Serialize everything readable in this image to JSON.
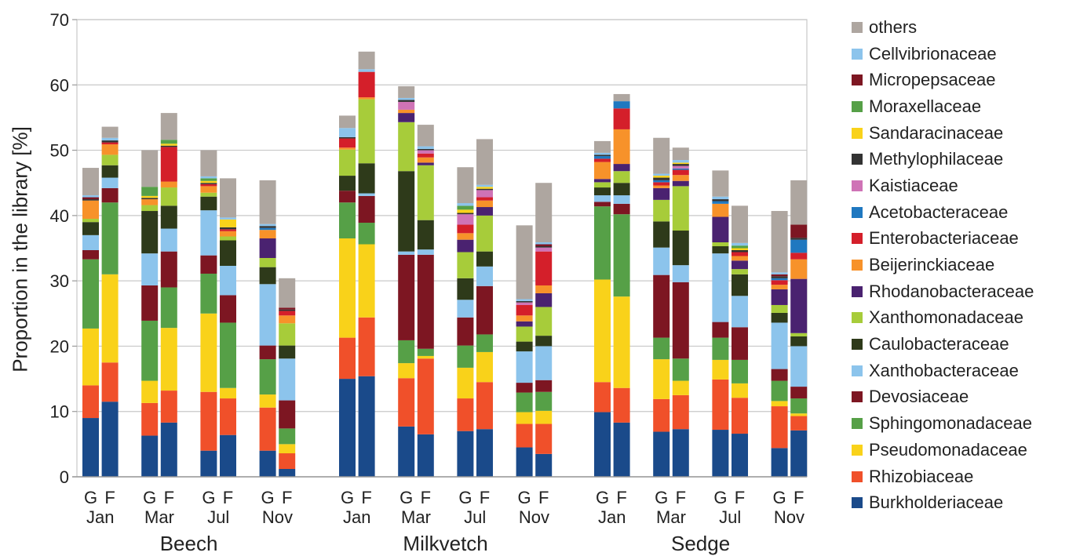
{
  "chart_data": {
    "type": "bar",
    "stacked": true,
    "ylabel": "Proportion in the library [%]",
    "ylim": [
      0,
      70
    ],
    "yticks": [
      0,
      10,
      20,
      30,
      40,
      50,
      60,
      70
    ],
    "grid": true,
    "legend_position": "right",
    "plants": [
      "Beech",
      "Milkvetch",
      "Sedge"
    ],
    "months": [
      "Jan",
      "Mar",
      "Jul",
      "Nov"
    ],
    "sample_types": [
      "G",
      "F"
    ],
    "series": [
      {
        "name": "Burkholderiaceae",
        "color": "#1a4a8a"
      },
      {
        "name": "Rhizobiaceae",
        "color": "#f0502a"
      },
      {
        "name": "Pseudomonadaceae",
        "color": "#f9d21a"
      },
      {
        "name": "Sphingomonadaceae",
        "color": "#56a047"
      },
      {
        "name": "Devosiaceae",
        "color": "#7d1622"
      },
      {
        "name": "Xanthobacteraceae",
        "color": "#8cc4ec"
      },
      {
        "name": "Caulobacteraceae",
        "color": "#2e3a1a"
      },
      {
        "name": "Xanthomonadaceae",
        "color": "#a7cc3a"
      },
      {
        "name": "Rhodanobacteraceae",
        "color": "#4a2270"
      },
      {
        "name": "Beijerinckiaceae",
        "color": "#f7922a"
      },
      {
        "name": "Enterobacteriaceae",
        "color": "#d41f2a"
      },
      {
        "name": "Acetobacteraceae",
        "color": "#1f78c0"
      },
      {
        "name": "Kaistiaceae",
        "color": "#cf73b6"
      },
      {
        "name": "Methylophilaceae",
        "color": "#333333"
      },
      {
        "name": "Sandaracinaceae",
        "color": "#f9d21a"
      },
      {
        "name": "Moraxellaceae",
        "color": "#56a047"
      },
      {
        "name": "Micropepsaceae",
        "color": "#7d1622"
      },
      {
        "name": "Cellvibrionaceae",
        "color": "#8cc4ec"
      },
      {
        "name": "others",
        "color": "#aea6a0"
      }
    ],
    "bars": [
      {
        "plant": "Beech",
        "month": "Jan",
        "type": "G",
        "values": [
          9.0,
          5.0,
          8.7,
          10.6,
          1.4,
          2.3,
          2.0,
          0.5,
          0.0,
          2.8,
          0.0,
          0.0,
          0.0,
          0.2,
          0.0,
          0.0,
          0.3,
          0.3,
          4.2
        ]
      },
      {
        "plant": "Beech",
        "month": "Jan",
        "type": "F",
        "values": [
          11.5,
          6.0,
          13.5,
          11.0,
          2.2,
          1.6,
          1.9,
          1.6,
          0.0,
          1.6,
          0.3,
          0.0,
          0.0,
          0.3,
          0.0,
          0.0,
          0.0,
          0.4,
          1.7
        ]
      },
      {
        "plant": "Beech",
        "month": "Mar",
        "type": "G",
        "values": [
          6.3,
          5.0,
          3.4,
          9.2,
          5.4,
          4.9,
          6.5,
          0.9,
          0.0,
          0.9,
          0.0,
          0.0,
          0.0,
          0.2,
          0.3,
          1.4,
          0.0,
          0.0,
          5.6
        ]
      },
      {
        "plant": "Beech",
        "month": "Mar",
        "type": "F",
        "values": [
          8.3,
          4.9,
          9.6,
          6.2,
          5.5,
          3.5,
          3.5,
          2.8,
          0.0,
          0.9,
          5.3,
          0.0,
          0.0,
          0.2,
          0.3,
          0.6,
          0.0,
          0.0,
          4.1
        ]
      },
      {
        "plant": "Beech",
        "month": "Jul",
        "type": "G",
        "values": [
          4.0,
          9.0,
          12.0,
          6.1,
          2.8,
          6.9,
          2.1,
          0.6,
          0.0,
          1.0,
          0.3,
          0.0,
          0.0,
          0.2,
          0.3,
          0.4,
          0.0,
          0.3,
          4.0
        ]
      },
      {
        "plant": "Beech",
        "month": "Jul",
        "type": "F",
        "values": [
          6.4,
          5.6,
          1.6,
          10.0,
          4.2,
          4.5,
          3.9,
          0.6,
          0.0,
          0.8,
          0.3,
          0.0,
          0.0,
          0.3,
          1.2,
          0.0,
          0.0,
          0.3,
          6.0
        ]
      },
      {
        "plant": "Beech",
        "month": "Nov",
        "type": "G",
        "values": [
          4.0,
          6.6,
          2.0,
          5.4,
          2.1,
          9.4,
          2.6,
          1.4,
          3.0,
          1.3,
          0.0,
          0.3,
          0.0,
          0.3,
          0.0,
          0.0,
          0.0,
          0.3,
          6.7
        ]
      },
      {
        "plant": "Beech",
        "month": "Nov",
        "type": "F",
        "values": [
          1.2,
          2.4,
          1.4,
          2.4,
          4.3,
          6.4,
          2.0,
          3.4,
          0.0,
          1.2,
          0.7,
          0.0,
          0.0,
          0.2,
          0.0,
          0.0,
          0.3,
          0.0,
          4.5
        ]
      },
      {
        "plant": "Milkvetch",
        "month": "Jan",
        "type": "G",
        "values": [
          15.0,
          6.3,
          15.2,
          5.5,
          1.8,
          0.0,
          2.3,
          4.0,
          0.0,
          0.3,
          1.4,
          0.0,
          0.0,
          0.2,
          0.0,
          0.0,
          0.0,
          1.4,
          1.9
        ]
      },
      {
        "plant": "Milkvetch",
        "month": "Jan",
        "type": "F",
        "values": [
          15.4,
          9.0,
          11.2,
          3.3,
          4.1,
          0.4,
          4.6,
          9.8,
          0.0,
          0.3,
          3.9,
          0.0,
          0.0,
          0.0,
          0.0,
          0.0,
          0.0,
          0.4,
          2.7
        ]
      },
      {
        "plant": "Milkvetch",
        "month": "Mar",
        "type": "G",
        "values": [
          7.7,
          7.4,
          2.3,
          3.5,
          13.1,
          0.5,
          12.3,
          7.5,
          1.4,
          0.5,
          0.0,
          0.0,
          1.2,
          0.3,
          0.0,
          0.0,
          0.0,
          0.3,
          1.8
        ]
      },
      {
        "plant": "Milkvetch",
        "month": "Mar",
        "type": "F",
        "values": [
          6.5,
          11.6,
          0.4,
          1.1,
          14.4,
          0.8,
          4.5,
          8.4,
          0.4,
          0.8,
          0.6,
          0.0,
          0.5,
          0.2,
          0.0,
          0.0,
          0.0,
          0.4,
          3.3
        ]
      },
      {
        "plant": "Milkvetch",
        "month": "Jul",
        "type": "G",
        "values": [
          7.0,
          5.0,
          4.7,
          3.4,
          4.3,
          2.7,
          3.3,
          4.0,
          1.9,
          1.0,
          1.3,
          0.0,
          1.6,
          0.2,
          0.5,
          0.6,
          0.0,
          0.4,
          5.5
        ]
      },
      {
        "plant": "Milkvetch",
        "month": "Jul",
        "type": "F",
        "values": [
          7.3,
          7.2,
          4.6,
          2.7,
          7.4,
          3.0,
          2.3,
          5.5,
          1.3,
          1.0,
          0.5,
          0.0,
          1.1,
          0.2,
          0.3,
          0.0,
          0.0,
          0.3,
          7.0
        ]
      },
      {
        "plant": "Milkvetch",
        "month": "Nov",
        "type": "G",
        "values": [
          4.5,
          3.6,
          1.8,
          3.0,
          1.5,
          4.8,
          1.5,
          2.3,
          0.8,
          0.9,
          1.6,
          0.0,
          0.4,
          0.2,
          0.0,
          0.0,
          0.0,
          0.3,
          11.3
        ]
      },
      {
        "plant": "Milkvetch",
        "month": "Nov",
        "type": "F",
        "values": [
          3.5,
          4.6,
          2.0,
          2.9,
          1.8,
          5.2,
          1.6,
          4.4,
          2.1,
          1.2,
          5.2,
          0.0,
          0.6,
          0.2,
          0.0,
          0.0,
          0.3,
          0.3,
          9.1
        ]
      },
      {
        "plant": "Sedge",
        "month": "Jan",
        "type": "G",
        "values": [
          9.9,
          4.6,
          15.7,
          11.2,
          0.7,
          1.0,
          1.2,
          0.8,
          0.5,
          2.6,
          0.5,
          0.4,
          0.0,
          0.2,
          0.0,
          0.0,
          0.0,
          0.3,
          1.8
        ]
      },
      {
        "plant": "Sedge",
        "month": "Jan",
        "type": "F",
        "values": [
          8.3,
          5.3,
          14.0,
          12.6,
          1.6,
          1.3,
          1.9,
          1.8,
          1.1,
          5.3,
          3.2,
          1.1,
          0.0,
          0.0,
          0.0,
          0.0,
          0.0,
          0.0,
          1.1
        ]
      },
      {
        "plant": "Sedge",
        "month": "Mar",
        "type": "G",
        "values": [
          6.9,
          5.0,
          6.1,
          3.3,
          9.6,
          4.2,
          4.0,
          3.3,
          1.8,
          0.4,
          0.5,
          0.3,
          0.0,
          0.4,
          0.3,
          0.0,
          0.0,
          0.3,
          5.5
        ]
      },
      {
        "plant": "Sedge",
        "month": "Mar",
        "type": "F",
        "values": [
          7.3,
          5.2,
          2.2,
          3.4,
          11.7,
          2.6,
          5.3,
          6.8,
          0.8,
          0.9,
          0.8,
          0.2,
          0.4,
          0.3,
          0.2,
          0.0,
          0.0,
          0.4,
          1.9
        ]
      },
      {
        "plant": "Sedge",
        "month": "Jul",
        "type": "G",
        "values": [
          7.2,
          7.7,
          3.0,
          3.4,
          2.4,
          10.5,
          1.1,
          0.6,
          3.9,
          2.0,
          0.0,
          0.4,
          0.0,
          0.3,
          0.0,
          0.0,
          0.0,
          0.4,
          4.0
        ]
      },
      {
        "plant": "Sedge",
        "month": "Jul",
        "type": "F",
        "values": [
          6.6,
          5.5,
          2.2,
          3.6,
          5.0,
          4.8,
          3.3,
          0.8,
          1.3,
          0.7,
          0.6,
          0.0,
          0.0,
          0.3,
          0.3,
          0.4,
          0.0,
          0.4,
          5.7
        ]
      },
      {
        "plant": "Sedge",
        "month": "Nov",
        "type": "G",
        "values": [
          4.4,
          6.4,
          0.8,
          3.1,
          1.8,
          7.1,
          1.5,
          1.2,
          2.4,
          0.7,
          0.7,
          0.3,
          0.0,
          0.3,
          0.0,
          0.0,
          0.3,
          0.3,
          9.4
        ]
      },
      {
        "plant": "Sedge",
        "month": "Nov",
        "type": "F",
        "values": [
          7.1,
          2.2,
          0.4,
          2.3,
          1.8,
          6.2,
          1.5,
          0.5,
          8.3,
          3.0,
          1.0,
          2.0,
          0.0,
          0.3,
          0.0,
          0.0,
          2.0,
          0.0,
          6.8
        ]
      }
    ]
  },
  "legend": {
    "items": [
      {
        "label": "others",
        "color": "#aea6a0"
      },
      {
        "label": "Cellvibrionaceae",
        "color": "#8cc4ec"
      },
      {
        "label": "Micropepsaceae",
        "color": "#7d1622"
      },
      {
        "label": "Moraxellaceae",
        "color": "#56a047"
      },
      {
        "label": "Sandaracinaceae",
        "color": "#f9d21a"
      },
      {
        "label": "Methylophilaceae",
        "color": "#333333"
      },
      {
        "label": "Kaistiaceae",
        "color": "#cf73b6"
      },
      {
        "label": "Acetobacteraceae",
        "color": "#1f78c0"
      },
      {
        "label": "Enterobacteriaceae",
        "color": "#d41f2a"
      },
      {
        "label": "Beijerinckiaceae",
        "color": "#f7922a"
      },
      {
        "label": "Rhodanobacteraceae",
        "color": "#4a2270"
      },
      {
        "label": "Xanthomonadaceae",
        "color": "#a7cc3a"
      },
      {
        "label": "Caulobacteraceae",
        "color": "#2e3a1a"
      },
      {
        "label": "Xanthobacteraceae",
        "color": "#8cc4ec"
      },
      {
        "label": "Devosiaceae",
        "color": "#7d1622"
      },
      {
        "label": "Sphingomonadaceae",
        "color": "#56a047"
      },
      {
        "label": "Pseudomonadaceae",
        "color": "#f9d21a"
      },
      {
        "label": "Rhizobiaceae",
        "color": "#f0502a"
      },
      {
        "label": "Burkholderiaceae",
        "color": "#1a4a8a"
      }
    ]
  }
}
